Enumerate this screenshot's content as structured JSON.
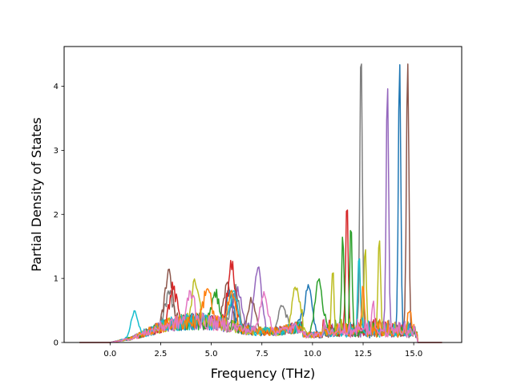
{
  "chart_data": {
    "type": "line",
    "title": "",
    "xlabel": "Frequency (THz)",
    "ylabel": "Partial Density of States",
    "xlim": [
      -2.27,
      17.37
    ],
    "ylim": [
      0,
      4.62
    ],
    "x_ticks": [
      0.0,
      2.5,
      5.0,
      7.5,
      10.0,
      12.5,
      15.0
    ],
    "x_tick_labels": [
      "0.0",
      "2.5",
      "5.0",
      "7.5",
      "10.0",
      "12.5",
      "15.0"
    ],
    "y_ticks": [
      0,
      1,
      2,
      3,
      4
    ],
    "y_tick_labels": [
      "0",
      "1",
      "2",
      "3",
      "4"
    ],
    "grid": false,
    "legend": "none",
    "x_range_of_curves": [
      -1.5,
      16.4
    ],
    "colors": [
      "#1f77b4",
      "#ff7f0e",
      "#2ca02c",
      "#d62728",
      "#9467bd",
      "#8c564b",
      "#e377c2",
      "#7f7f7f",
      "#bcbd22",
      "#17becf"
    ],
    "series": [
      {
        "color": "#7f7f7f",
        "peaks": [
          [
            2.9,
            0.5
          ],
          [
            6.2,
            0.6
          ],
          [
            8.5,
            0.4
          ],
          [
            12.4,
            4.5
          ]
        ]
      },
      {
        "color": "#8c564b",
        "peaks": [
          [
            2.9,
            0.85
          ],
          [
            5.8,
            0.6
          ],
          [
            7.0,
            0.5
          ],
          [
            14.7,
            4.3
          ]
        ]
      },
      {
        "color": "#1f77b4",
        "peaks": [
          [
            5.9,
            0.55
          ],
          [
            9.8,
            0.78
          ],
          [
            14.3,
            4.25
          ]
        ]
      },
      {
        "color": "#9467bd",
        "peaks": [
          [
            6.3,
            0.6
          ],
          [
            7.3,
            0.98
          ],
          [
            13.7,
            3.93
          ]
        ]
      },
      {
        "color": "#d62728",
        "peaks": [
          [
            3.1,
            0.55
          ],
          [
            6.0,
            0.98
          ],
          [
            11.7,
            2.1
          ]
        ]
      },
      {
        "color": "#2ca02c",
        "peaks": [
          [
            5.2,
            0.5
          ],
          [
            10.3,
            0.85
          ],
          [
            11.5,
            1.44
          ],
          [
            11.9,
            1.67
          ]
        ]
      },
      {
        "color": "#bcbd22",
        "peaks": [
          [
            4.2,
            0.55
          ],
          [
            9.2,
            0.65
          ],
          [
            11.0,
            1.0
          ],
          [
            12.6,
            1.34
          ],
          [
            13.3,
            1.52
          ]
        ]
      },
      {
        "color": "#17becf",
        "peaks": [
          [
            1.2,
            0.4
          ],
          [
            6.1,
            0.55
          ],
          [
            12.3,
            1.22
          ]
        ]
      },
      {
        "color": "#ff7f0e",
        "peaks": [
          [
            4.8,
            0.55
          ],
          [
            6.0,
            0.5
          ],
          [
            12.5,
            0.72
          ],
          [
            14.8,
            0.35
          ]
        ]
      },
      {
        "color": "#e377c2",
        "peaks": [
          [
            4.0,
            0.45
          ],
          [
            7.6,
            0.62
          ],
          [
            13.0,
            0.55
          ]
        ]
      }
    ]
  }
}
